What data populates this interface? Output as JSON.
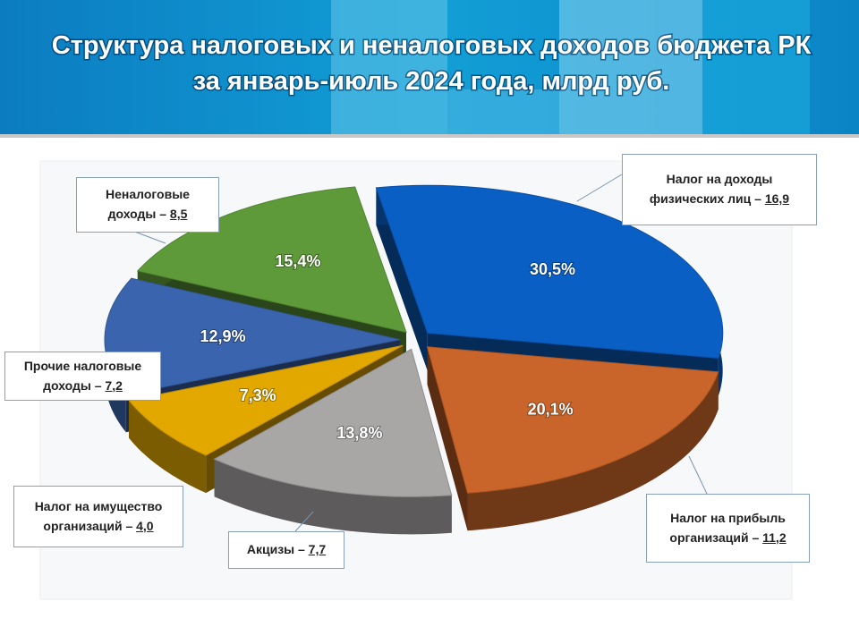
{
  "chart_data": {
    "type": "pie",
    "title": "Структура налоговых и неналоговых доходов бюджета РК",
    "subtitle": "за январь-июль 2024 года, млрд руб.",
    "categories": [
      "Налог на доходы физических лиц –",
      "Налог на прибыль организаций –",
      "Акцизы –",
      "Налог на имущество организаций –",
      "Прочие налоговые доходы –",
      "Неналоговые доходы –"
    ],
    "values": [
      30.5,
      20.1,
      13.8,
      7.3,
      12.9,
      15.4
    ],
    "value_labels": [
      "30,5%",
      "20,1%",
      "13,8%",
      "7,3%",
      "12,9%",
      "15,4%"
    ],
    "amounts": [
      16.9,
      11.2,
      7.7,
      4.0,
      7.2,
      8.5
    ],
    "amount_labels": [
      "16,9",
      "11,2",
      "7,7",
      "4,0",
      "7,2",
      "8,5"
    ],
    "colors": [
      "#0a5fc4",
      "#c9652a",
      "#a9a6a6",
      "#e2a800",
      "#3a64ad",
      "#5e9a3a"
    ]
  }
}
